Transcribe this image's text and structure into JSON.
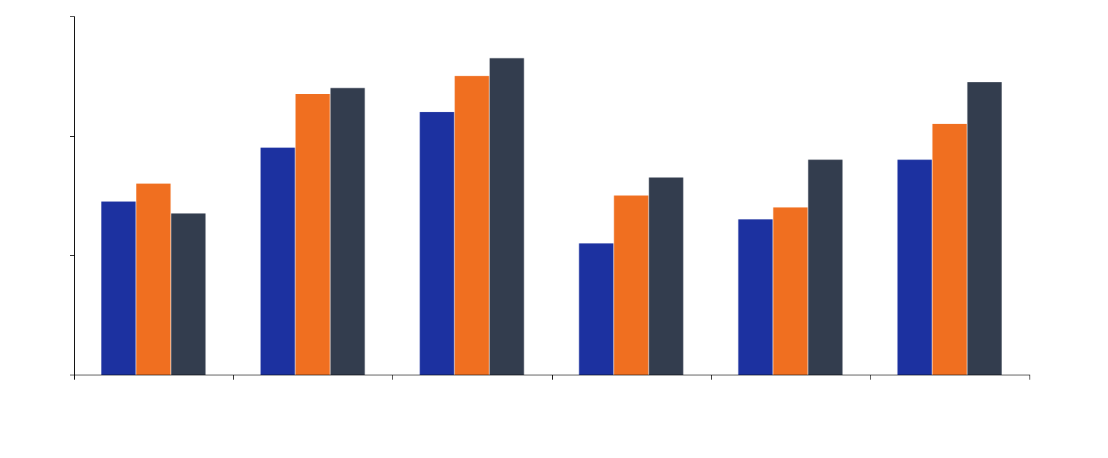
{
  "chart_data": {
    "type": "bar",
    "title": "",
    "xlabel": "",
    "ylabel": "",
    "categories": [
      "",
      "",
      "",
      "",
      "",
      ""
    ],
    "ylim": [
      0,
      300
    ],
    "yticks": [
      0,
      100,
      200,
      300
    ],
    "ytick_labels": [
      "",
      "",
      "",
      ""
    ],
    "grid": false,
    "legend": "none",
    "series": [
      {
        "color": "#1c31a0",
        "values": [
          145,
          190,
          220,
          110,
          130,
          180
        ]
      },
      {
        "color": "#f06f20",
        "values": [
          160,
          235,
          250,
          150,
          140,
          210
        ]
      },
      {
        "color": "#333d4e",
        "values": [
          135,
          240,
          265,
          165,
          180,
          245
        ]
      }
    ]
  }
}
